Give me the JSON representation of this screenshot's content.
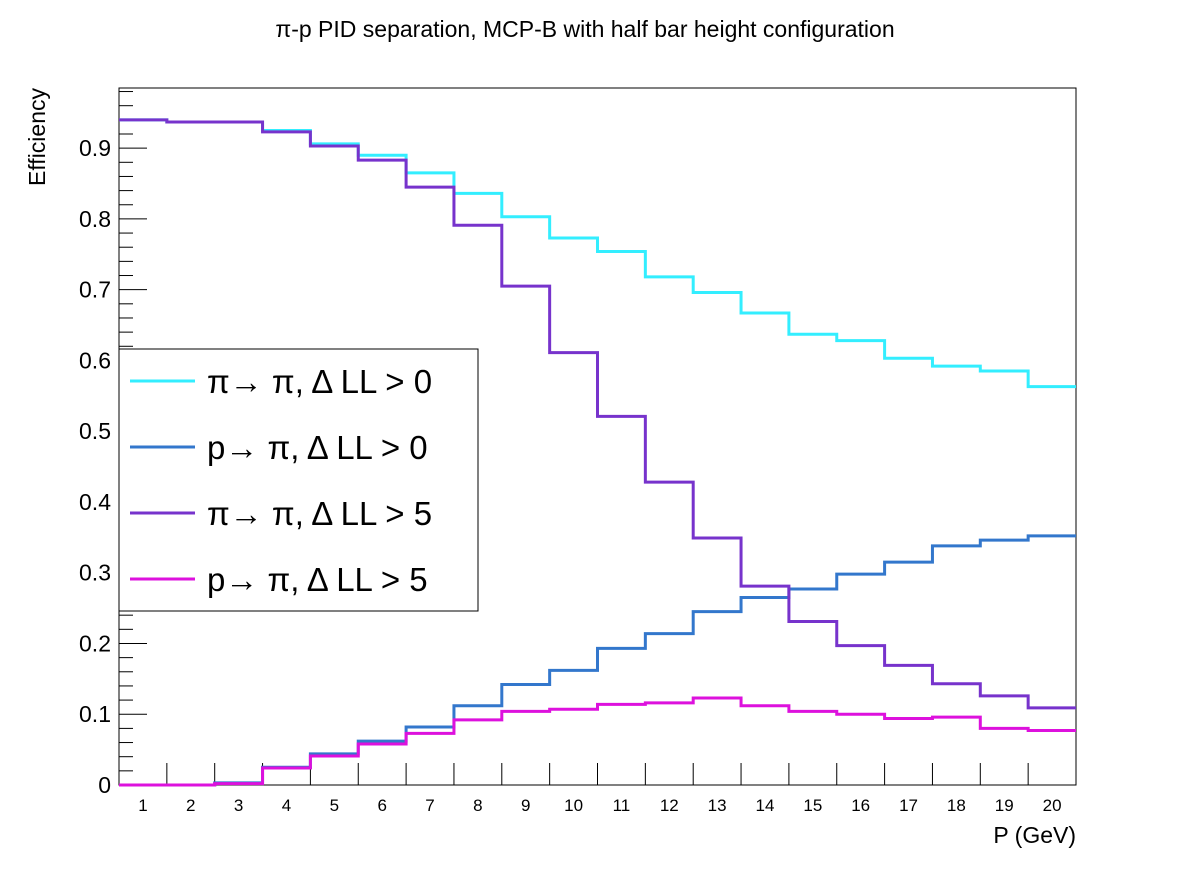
{
  "chart_data": {
    "type": "line",
    "style": "step-histogram",
    "title": "π-p PID separation, MCP-B with half bar height configuration",
    "xlabel": "P (GeV)",
    "ylabel": "Efficiency",
    "xlim": [
      0.5,
      20.5
    ],
    "ylim": [
      0,
      0.985
    ],
    "x": [
      1,
      2,
      3,
      4,
      5,
      6,
      7,
      8,
      9,
      10,
      11,
      12,
      13,
      14,
      15,
      16,
      17,
      18,
      19,
      20
    ],
    "x_tick_labels": [
      "1",
      "2",
      "3",
      "4",
      "5",
      "6",
      "7",
      "8",
      "9",
      "10",
      "11",
      "12",
      "13",
      "14",
      "15",
      "16",
      "17",
      "18",
      "19",
      "20"
    ],
    "y_ticks": [
      0,
      0.1,
      0.2,
      0.3,
      0.4,
      0.5,
      0.6,
      0.7,
      0.8,
      0.9
    ],
    "y_tick_labels": [
      "0",
      "0.1",
      "0.2",
      "0.3",
      "0.4",
      "0.5",
      "0.6",
      "0.7",
      "0.8",
      "0.9"
    ],
    "grid": false,
    "legend_position": "middle-left",
    "series": [
      {
        "name": "π→ π, Δ LL > 0",
        "color": "#33eeff",
        "values": [
          0.94,
          0.937,
          0.937,
          0.925,
          0.906,
          0.89,
          0.865,
          0.836,
          0.803,
          0.773,
          0.754,
          0.718,
          0.696,
          0.667,
          0.637,
          0.628,
          0.603,
          0.592,
          0.585,
          0.563
        ]
      },
      {
        "name": "p→ π, Δ LL > 0",
        "color": "#3377cc",
        "values": [
          0.0,
          0.0,
          0.003,
          0.025,
          0.044,
          0.062,
          0.082,
          0.112,
          0.142,
          0.162,
          0.193,
          0.214,
          0.245,
          0.265,
          0.277,
          0.298,
          0.315,
          0.338,
          0.346,
          0.352
        ]
      },
      {
        "name": "π→ π, Δ LL > 5",
        "color": "#7733cc",
        "values": [
          0.94,
          0.937,
          0.937,
          0.923,
          0.903,
          0.883,
          0.845,
          0.791,
          0.705,
          0.611,
          0.521,
          0.428,
          0.349,
          0.281,
          0.231,
          0.197,
          0.169,
          0.143,
          0.126,
          0.109
        ]
      },
      {
        "name": "p→ π, Δ LL > 5",
        "color": "#dd11dd",
        "values": [
          0.0,
          0.0,
          0.002,
          0.024,
          0.041,
          0.058,
          0.073,
          0.092,
          0.104,
          0.107,
          0.114,
          0.116,
          0.123,
          0.112,
          0.104,
          0.1,
          0.094,
          0.096,
          0.08,
          0.077
        ]
      }
    ]
  }
}
